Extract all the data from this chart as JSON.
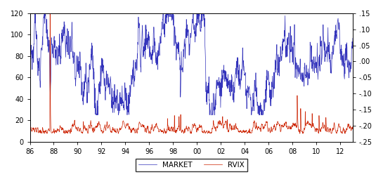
{
  "x_tick_labels": [
    "86",
    "88",
    "90",
    "92",
    "94",
    "96",
    "98",
    "00",
    "02",
    "04",
    "06",
    "08",
    "10",
    "12"
  ],
  "ylim_left": [
    0,
    120
  ],
  "ylim_right": [
    -0.25,
    0.15
  ],
  "yticks_left": [
    0,
    20,
    40,
    60,
    80,
    100,
    120
  ],
  "yticks_right": [
    -0.25,
    -0.2,
    -0.15,
    -0.1,
    -0.05,
    0.0,
    0.05,
    0.1,
    0.15
  ],
  "ytick_labels_right": [
    "-.25",
    "-.20",
    "-.15",
    "-.10",
    "-.05",
    ".00",
    ".05",
    ".10",
    ".15"
  ],
  "ytick_labels_left": [
    "0",
    "20",
    "40",
    "60",
    "80",
    "100",
    "120"
  ],
  "market_color": "#3333BB",
  "rvix_color": "#CC2200",
  "legend_entries": [
    "MARKET",
    "RVIX"
  ],
  "n_points": 1408,
  "background_color": "#ffffff",
  "linewidth_market": 0.5,
  "linewidth_rvix": 0.5,
  "figsize": [
    5.45,
    2.52
  ],
  "dpi": 100
}
